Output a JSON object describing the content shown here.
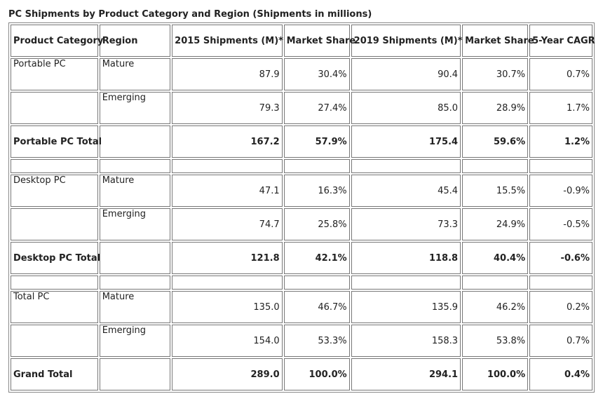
{
  "title": "PC Shipments by Product Category and Region (Shipments in millions)",
  "columns": [
    "Product Category",
    "Region",
    "2015 Shipments (M)*",
    "Market Share",
    "2019 Shipments (M)*",
    "Market Share",
    "5-Year CAGR"
  ],
  "rows": [
    {
      "type": "data",
      "category": "Portable PC",
      "region": "Mature",
      "s2015": "87.9",
      "share2015": "30.4%",
      "s2019": "90.4",
      "share2019": "30.7%",
      "cagr": "0.7%"
    },
    {
      "type": "data",
      "category": "",
      "region": "Emerging",
      "s2015": "79.3",
      "share2015": "27.4%",
      "s2019": "85.0",
      "share2019": "28.9%",
      "cagr": "1.7%"
    },
    {
      "type": "total",
      "category": "Portable PC Total",
      "region": "",
      "s2015": "167.2",
      "share2015": "57.9%",
      "s2019": "175.4",
      "share2019": "59.6%",
      "cagr": "1.2%"
    },
    {
      "type": "spacer"
    },
    {
      "type": "data",
      "category": "Desktop PC",
      "region": "Mature",
      "s2015": "47.1",
      "share2015": "16.3%",
      "s2019": "45.4",
      "share2019": "15.5%",
      "cagr": "-0.9%"
    },
    {
      "type": "data",
      "category": "",
      "region": "Emerging",
      "s2015": "74.7",
      "share2015": "25.8%",
      "s2019": "73.3",
      "share2019": "24.9%",
      "cagr": "-0.5%"
    },
    {
      "type": "total",
      "category": "Desktop PC Total",
      "region": "",
      "s2015": "121.8",
      "share2015": "42.1%",
      "s2019": "118.8",
      "share2019": "40.4%",
      "cagr": "-0.6%"
    },
    {
      "type": "spacer"
    },
    {
      "type": "data",
      "category": "Total PC",
      "region": "Mature",
      "s2015": "135.0",
      "share2015": "46.7%",
      "s2019": "135.9",
      "share2019": "46.2%",
      "cagr": "0.2%"
    },
    {
      "type": "data",
      "category": "",
      "region": "Emerging",
      "s2015": "154.0",
      "share2015": "53.3%",
      "s2019": "158.3",
      "share2019": "53.8%",
      "cagr": "0.7%"
    },
    {
      "type": "grand",
      "category": "Grand Total",
      "region": "",
      "s2015": "289.0",
      "share2015": "100.0%",
      "s2019": "294.1",
      "share2019": "100.0%",
      "cagr": "0.4%"
    }
  ]
}
